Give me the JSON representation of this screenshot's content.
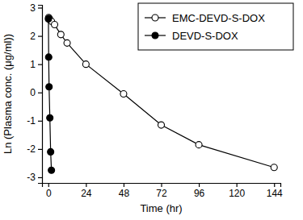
{
  "chart_data": {
    "type": "line",
    "x_label": "Time (hr)",
    "y_label": "Ln (Plasma conc. (μg/ml))",
    "xlim": [
      -4,
      148
    ],
    "xticks": [
      0,
      24,
      48,
      72,
      96,
      120,
      144
    ],
    "ylim": [
      -3.2,
      3.1
    ],
    "yticks": [
      -3,
      -2,
      -1,
      0,
      1,
      2,
      3
    ],
    "grid": false,
    "legend": "top-right",
    "series": [
      {
        "name": "EMC-DEVD-S-DOX",
        "color": "#000000",
        "marker": "circle-open",
        "line_style": "solid",
        "x": [
          0.25,
          0.5,
          1,
          2,
          4,
          8,
          12,
          24,
          48,
          72,
          96,
          144
        ],
        "values": [
          2.65,
          2.62,
          2.58,
          2.52,
          2.4,
          2.05,
          1.75,
          1.0,
          -0.05,
          -1.15,
          -1.85,
          -2.65
        ]
      },
      {
        "name": "DEVD-S-DOX",
        "color": "#000000",
        "marker": "circle",
        "line_style": "solid",
        "x": [
          0.083,
          0.25,
          0.5,
          1,
          1.5,
          2
        ],
        "values": [
          2.6,
          1.25,
          0.2,
          -0.9,
          -2.1,
          -2.75
        ]
      }
    ]
  }
}
